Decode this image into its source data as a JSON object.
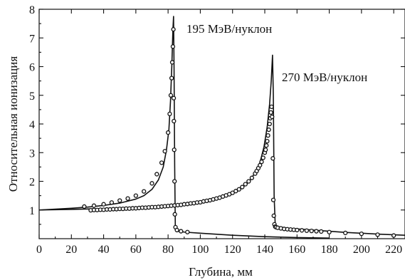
{
  "chart_data": {
    "type": "line",
    "title": "",
    "xlabel": "Глубина, мм",
    "ylabel": "Относительная ионизация",
    "xlim": [
      0,
      227
    ],
    "ylim": [
      0,
      8
    ],
    "xticks": [
      "0",
      "20",
      "40",
      "60",
      "80",
      "100",
      "120",
      "140",
      "160",
      "180",
      "200",
      "220"
    ],
    "yticks": [
      "1",
      "2",
      "3",
      "4",
      "5",
      "6",
      "7",
      "8"
    ],
    "grid": false,
    "legend": "none",
    "series": [
      {
        "name": "195 МэВ/нуклон",
        "line": {
          "x": [
            0,
            10,
            20,
            30,
            40,
            50,
            60,
            65,
            70,
            74,
            77,
            79,
            80.5,
            81.5,
            82.3,
            83,
            83.4,
            83.7,
            84.1,
            84.5,
            86,
            90,
            100,
            120,
            140,
            160,
            180
          ],
          "y": [
            1.0,
            1.03,
            1.06,
            1.1,
            1.16,
            1.24,
            1.38,
            1.5,
            1.72,
            2.05,
            2.5,
            3.1,
            3.8,
            4.8,
            6.0,
            7.3,
            7.75,
            6.0,
            2.5,
            0.35,
            0.26,
            0.23,
            0.19,
            0.12,
            0.07,
            0.04,
            0.02
          ]
        },
        "points": {
          "x": [
            28,
            34,
            40,
            45,
            50,
            55,
            60,
            65,
            70,
            73,
            76,
            78,
            80,
            81,
            81.7,
            82.2,
            82.6,
            83,
            83.3,
            83.5,
            83.6,
            83.8,
            84,
            84.2,
            84.6,
            85.5,
            88,
            92
          ],
          "y": [
            1.12,
            1.15,
            1.2,
            1.26,
            1.33,
            1.4,
            1.5,
            1.65,
            1.93,
            2.25,
            2.65,
            3.05,
            3.7,
            4.35,
            5.0,
            5.6,
            6.15,
            6.7,
            7.3,
            4.9,
            4.1,
            3.1,
            2.0,
            0.85,
            0.4,
            0.3,
            0.26,
            0.23
          ]
        }
      },
      {
        "name": "270 МэВ/нуклон",
        "line": {
          "x": [
            0,
            20,
            40,
            60,
            80,
            100,
            110,
            120,
            125,
            130,
            134,
            137,
            139.5,
            141.5,
            143,
            144,
            144.8,
            145.3,
            145.8,
            146.5,
            148,
            155,
            170,
            190,
            210,
            227
          ],
          "y": [
            1.0,
            1.02,
            1.05,
            1.09,
            1.15,
            1.27,
            1.37,
            1.57,
            1.73,
            1.97,
            2.3,
            2.65,
            3.2,
            3.9,
            4.7,
            5.5,
            6.4,
            5.0,
            1.5,
            0.45,
            0.42,
            0.36,
            0.3,
            0.22,
            0.16,
            0.12
          ]
        },
        "points": {
          "x": [
            32,
            34,
            36,
            38,
            40,
            42,
            44,
            46,
            48,
            50,
            52,
            54,
            56,
            58,
            60,
            62,
            64,
            66,
            68,
            70,
            72,
            74,
            76,
            78,
            80,
            82,
            84,
            86,
            88,
            90,
            92,
            94,
            96,
            98,
            100,
            102,
            104,
            106,
            108,
            110,
            112,
            114,
            116,
            118,
            120,
            122,
            124,
            126,
            128,
            130,
            132,
            134,
            135,
            136,
            137,
            138,
            139,
            140,
            140.5,
            141,
            141.5,
            142,
            142.5,
            143,
            143.4,
            143.8,
            144.2,
            144.5,
            145,
            145.3,
            145.6,
            146,
            146.5,
            147,
            148,
            150,
            152,
            154,
            156,
            158,
            160,
            163,
            166,
            169,
            172,
            175,
            180,
            190,
            200,
            210,
            220
          ],
          "y": [
            0.99,
            1.0,
            1.0,
            1.01,
            1.01,
            1.02,
            1.02,
            1.03,
            1.03,
            1.04,
            1.04,
            1.05,
            1.05,
            1.06,
            1.06,
            1.07,
            1.08,
            1.08,
            1.09,
            1.1,
            1.1,
            1.11,
            1.12,
            1.13,
            1.14,
            1.15,
            1.16,
            1.17,
            1.18,
            1.2,
            1.21,
            1.23,
            1.24,
            1.26,
            1.27,
            1.3,
            1.32,
            1.34,
            1.37,
            1.4,
            1.43,
            1.47,
            1.51,
            1.55,
            1.6,
            1.66,
            1.72,
            1.8,
            1.9,
            2.0,
            2.12,
            2.27,
            2.36,
            2.46,
            2.56,
            2.68,
            2.82,
            3.0,
            3.1,
            3.25,
            3.4,
            3.6,
            3.8,
            4.0,
            4.2,
            4.4,
            4.6,
            4.25,
            2.8,
            1.35,
            0.8,
            0.5,
            0.42,
            0.4,
            0.38,
            0.36,
            0.34,
            0.33,
            0.32,
            0.31,
            0.3,
            0.29,
            0.28,
            0.27,
            0.26,
            0.25,
            0.23,
            0.2,
            0.17,
            0.14,
            0.11
          ]
        }
      }
    ]
  }
}
